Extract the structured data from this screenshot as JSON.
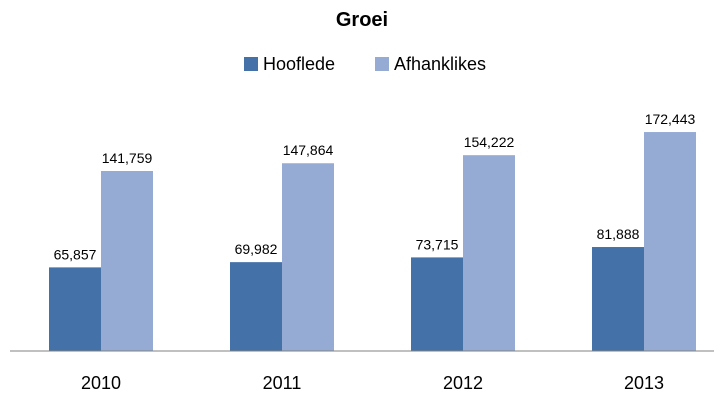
{
  "chart_data": {
    "type": "bar",
    "title": "Groei",
    "categories": [
      "2010",
      "2011",
      "2012",
      "2013"
    ],
    "series": [
      {
        "name": "Hooflede",
        "color": "#4472a8",
        "values": [
          65857,
          69982,
          73715,
          81888
        ],
        "labels": [
          "65,857",
          "69,982",
          "73,715",
          "81,888"
        ]
      },
      {
        "name": "Afhanklikes",
        "color": "#95abd4",
        "values": [
          141759,
          147864,
          154222,
          172443
        ],
        "labels": [
          "141,759",
          "147,864",
          "154,222",
          "172,443"
        ]
      }
    ],
    "ylim": [
      0,
      200000
    ],
    "legend_position": "top",
    "grid": false,
    "axis_color": "#808080"
  }
}
